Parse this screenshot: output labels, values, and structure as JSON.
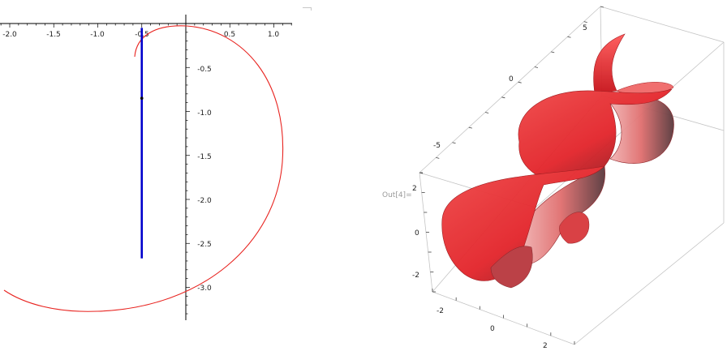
{
  "output_label": "Out[4]=",
  "plot_2d": {
    "x_ticks": [
      "-2.0",
      "-1.5",
      "-1.0",
      "-0.5",
      "0.5",
      "1.0"
    ],
    "y_ticks": [
      "-0.5",
      "-1.0",
      "-1.5",
      "-2.0",
      "-2.5",
      "-3.0"
    ],
    "x_range": [
      -2.1,
      1.2
    ],
    "y_range": [
      -3.3,
      0.1
    ],
    "curve_color": "#e8231f",
    "line_color": "#0000cc",
    "blue_segment": {
      "x": -0.5,
      "y_from": -0.05,
      "y_to": -2.67
    },
    "point": {
      "x": -0.5,
      "y": -0.85
    }
  },
  "plot_3d": {
    "top_axis_ticks": [
      "5",
      "0",
      "-5"
    ],
    "left_axis_ticks": [
      "2",
      "0",
      "-2"
    ],
    "bottom_axis_ticks": [
      "-2",
      "0",
      "2"
    ],
    "surface_color": "#e3262c"
  }
}
